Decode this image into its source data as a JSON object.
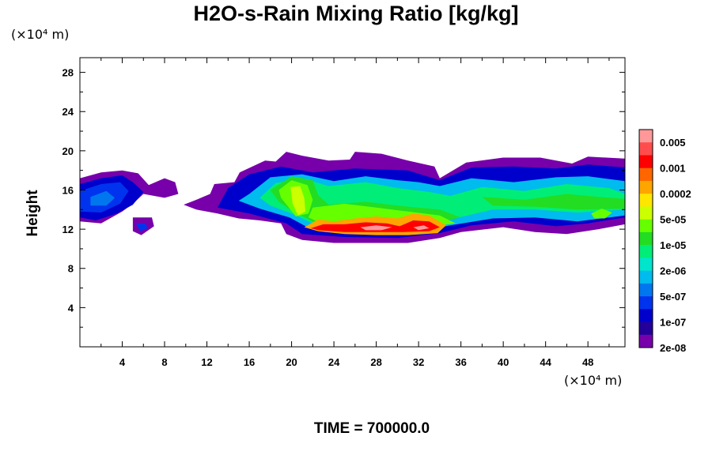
{
  "chart_data": {
    "type": "heatmap",
    "title": "H2O-s-Rain Mixing Ratio [kg/kg]",
    "xlabel": "",
    "ylabel": "Height",
    "x_unit": "(×10⁴ m)",
    "y_unit": "(×10⁴ m)",
    "xlim": [
      0,
      51.5
    ],
    "ylim": [
      0,
      29.5
    ],
    "xticks": [
      4,
      8,
      12,
      16,
      20,
      24,
      28,
      32,
      36,
      40,
      44,
      48
    ],
    "yticks": [
      4,
      8,
      12,
      16,
      20,
      24,
      28
    ],
    "grid": false,
    "colorbar": {
      "labels": [
        "0.005",
        "0.001",
        "0.0002",
        "5e-05",
        "1e-05",
        "2e-06",
        "5e-07",
        "1e-07",
        "2e-08"
      ],
      "colors": [
        "#ff9999",
        "#ff4d4d",
        "#ff0000",
        "#ff6600",
        "#ffa500",
        "#ffe600",
        "#ccff00",
        "#66ff00",
        "#22dd22",
        "#00ee77",
        "#00e5cc",
        "#00bbee",
        "#0077ee",
        "#0033ee",
        "#0000cc",
        "#220099",
        "#7700aa"
      ]
    },
    "footer": "TIME = 700000.0",
    "regions": [
      {
        "level": 0,
        "points": [
          [
            0,
            17.2
          ],
          [
            2,
            17.8
          ],
          [
            4,
            18
          ],
          [
            5.5,
            17.7
          ],
          [
            6.5,
            16.5
          ],
          [
            8,
            17.2
          ],
          [
            9,
            16.8
          ],
          [
            9.3,
            15.6
          ],
          [
            8,
            15.2
          ],
          [
            6,
            15.6
          ],
          [
            5,
            14.6
          ],
          [
            4,
            13.8
          ],
          [
            2,
            12.6
          ],
          [
            0,
            12.8
          ]
        ]
      },
      {
        "level": 0,
        "points": [
          [
            5,
            13.2
          ],
          [
            6.8,
            13.2
          ],
          [
            7,
            12.3
          ],
          [
            5.8,
            11.4
          ],
          [
            5,
            11.8
          ]
        ]
      },
      {
        "level": 0,
        "points": [
          [
            9.8,
            14.5
          ],
          [
            11,
            15
          ],
          [
            12.3,
            15.6
          ],
          [
            12.7,
            16.6
          ],
          [
            14.6,
            16.8
          ],
          [
            15.1,
            17.8
          ],
          [
            16.5,
            18.5
          ],
          [
            17.5,
            19
          ],
          [
            18.5,
            18.9
          ],
          [
            19.5,
            19.9
          ],
          [
            21,
            19.5
          ],
          [
            23.5,
            19
          ],
          [
            25.5,
            19.1
          ],
          [
            26,
            19.9
          ],
          [
            28.5,
            19.7
          ],
          [
            31,
            19
          ],
          [
            33.5,
            18.4
          ],
          [
            34,
            17.2
          ],
          [
            36.5,
            18.8
          ],
          [
            40,
            19.3
          ],
          [
            43.5,
            19.3
          ],
          [
            46.5,
            18.7
          ],
          [
            48,
            19.4
          ],
          [
            51.5,
            19.2
          ],
          [
            51.5,
            12.5
          ],
          [
            49,
            12
          ],
          [
            46,
            11.5
          ],
          [
            43,
            11.7
          ],
          [
            40,
            12.2
          ],
          [
            36,
            11.7
          ],
          [
            34,
            11.1
          ],
          [
            31,
            10.6
          ],
          [
            27,
            10.6
          ],
          [
            24,
            10.6
          ],
          [
            21,
            10.9
          ],
          [
            19.5,
            11.5
          ],
          [
            19,
            12.6
          ],
          [
            17,
            12.9
          ],
          [
            15,
            13.1
          ],
          [
            13,
            13.6
          ],
          [
            11,
            14
          ]
        ]
      },
      {
        "level": 2,
        "points": [
          [
            0,
            16.6
          ],
          [
            2,
            17.2
          ],
          [
            4,
            17.5
          ],
          [
            5,
            16.8
          ],
          [
            6,
            15.8
          ],
          [
            5,
            14.5
          ],
          [
            3.5,
            13.6
          ],
          [
            1.5,
            12.9
          ],
          [
            0,
            13.2
          ]
        ]
      },
      {
        "level": 2,
        "points": [
          [
            14,
            16.2
          ],
          [
            16,
            17.6
          ],
          [
            19,
            18.4
          ],
          [
            22,
            17.8
          ],
          [
            26,
            18.2
          ],
          [
            31,
            18
          ],
          [
            34,
            17
          ],
          [
            37,
            18.3
          ],
          [
            41,
            18.4
          ],
          [
            45,
            18.2
          ],
          [
            48,
            18.6
          ],
          [
            51.5,
            18.3
          ],
          [
            51.5,
            13.2
          ],
          [
            48,
            12.6
          ],
          [
            45,
            12.3
          ],
          [
            41,
            12.8
          ],
          [
            37,
            12.4
          ],
          [
            34,
            11.6
          ],
          [
            30,
            11.1
          ],
          [
            25,
            11.2
          ],
          [
            21,
            11.5
          ],
          [
            19.5,
            12.6
          ],
          [
            16,
            13.6
          ],
          [
            13,
            14.2
          ]
        ]
      },
      {
        "level": 3,
        "points": [
          [
            0,
            15.9
          ],
          [
            2,
            16.6
          ],
          [
            3.8,
            16.8
          ],
          [
            4.6,
            15.9
          ],
          [
            3.8,
            14.6
          ],
          [
            2,
            13.7
          ],
          [
            0,
            13.8
          ]
        ]
      },
      {
        "level": 3,
        "points": [
          [
            5.3,
            12.6
          ],
          [
            6.2,
            12.6
          ],
          [
            6.4,
            12.1
          ],
          [
            5.7,
            11.8
          ]
        ]
      },
      {
        "level": 4,
        "points": [
          [
            1,
            15.3
          ],
          [
            2.5,
            15.9
          ],
          [
            3.3,
            15.2
          ],
          [
            2.5,
            14.4
          ],
          [
            1,
            14.4
          ]
        ]
      },
      {
        "level": 5,
        "points": [
          [
            16,
            15.6
          ],
          [
            18,
            17.3
          ],
          [
            21,
            17.6
          ],
          [
            24,
            16.9
          ],
          [
            27,
            17.4
          ],
          [
            30,
            17
          ],
          [
            32,
            16.8
          ],
          [
            34,
            16.4
          ],
          [
            37,
            17.2
          ],
          [
            41,
            16.8
          ],
          [
            45,
            17.3
          ],
          [
            48,
            17.4
          ],
          [
            51.5,
            16.9
          ],
          [
            51.5,
            13.4
          ],
          [
            47,
            12.8
          ],
          [
            43,
            13.2
          ],
          [
            39,
            13.1
          ],
          [
            35,
            12.4
          ],
          [
            31,
            11.6
          ],
          [
            26,
            11.7
          ],
          [
            21.5,
            12.2
          ],
          [
            19.8,
            13.2
          ],
          [
            17,
            14.1
          ],
          [
            15,
            14.9
          ]
        ]
      },
      {
        "level": 7,
        "points": [
          [
            17,
            15.2
          ],
          [
            18.5,
            16.7
          ],
          [
            21,
            17.2
          ],
          [
            23.5,
            16.4
          ],
          [
            27,
            16.8
          ],
          [
            30,
            16.2
          ],
          [
            33,
            15.8
          ],
          [
            35,
            15.4
          ],
          [
            38,
            16.3
          ],
          [
            42,
            15.9
          ],
          [
            46,
            16.6
          ],
          [
            50,
            16.2
          ],
          [
            51.5,
            15.6
          ],
          [
            51.5,
            14
          ],
          [
            47,
            13.7
          ],
          [
            43,
            14
          ],
          [
            39,
            14
          ],
          [
            35,
            13
          ],
          [
            31,
            12
          ],
          [
            26,
            12
          ],
          [
            22,
            12.6
          ],
          [
            20,
            13.6
          ],
          [
            18,
            14.4
          ]
        ]
      },
      {
        "level": 8,
        "points": [
          [
            18,
            16
          ],
          [
            20,
            17.4
          ],
          [
            22,
            17
          ],
          [
            22.5,
            15.5
          ],
          [
            23.5,
            14.5
          ],
          [
            27,
            14.8
          ],
          [
            30,
            14.4
          ],
          [
            34,
            14
          ],
          [
            36,
            13.2
          ],
          [
            31,
            12.2
          ],
          [
            26,
            12.2
          ],
          [
            22,
            12.8
          ],
          [
            20,
            13.9
          ],
          [
            18.8,
            14.8
          ]
        ]
      },
      {
        "level": 8,
        "points": [
          [
            38,
            15.3
          ],
          [
            42,
            15
          ],
          [
            46,
            15.6
          ],
          [
            49,
            15.3
          ],
          [
            51.5,
            15.1
          ],
          [
            51.5,
            14.1
          ],
          [
            47,
            14
          ],
          [
            43,
            14.3
          ],
          [
            39,
            14.4
          ]
        ]
      },
      {
        "level": 9,
        "points": [
          [
            18.8,
            16
          ],
          [
            20,
            17
          ],
          [
            21.5,
            16.5
          ],
          [
            22,
            15
          ],
          [
            21.6,
            13.6
          ],
          [
            20.4,
            13.3
          ],
          [
            19.6,
            14.4
          ],
          [
            19,
            15.2
          ]
        ]
      },
      {
        "level": 9,
        "points": [
          [
            22,
            14.2
          ],
          [
            25,
            14.6
          ],
          [
            28,
            14.2
          ],
          [
            31,
            13.8
          ],
          [
            34,
            13.4
          ],
          [
            35.5,
            12.6
          ],
          [
            32,
            12.1
          ],
          [
            27,
            12.1
          ],
          [
            23,
            12.5
          ],
          [
            21.6,
            13.2
          ]
        ]
      },
      {
        "level": 9,
        "points": [
          [
            48.3,
            13.6
          ],
          [
            49.3,
            14.1
          ],
          [
            50.3,
            13.7
          ],
          [
            49.6,
            13.1
          ],
          [
            48.6,
            13.1
          ]
        ]
      },
      {
        "level": 10,
        "points": [
          [
            19.9,
            16.3
          ],
          [
            20.8,
            16.4
          ],
          [
            21.2,
            15.2
          ],
          [
            21.3,
            13.8
          ],
          [
            20.6,
            13.4
          ],
          [
            20.1,
            14.6
          ]
        ]
      },
      {
        "level": 12,
        "points": [
          [
            21.2,
            12.2
          ],
          [
            22.5,
            13
          ],
          [
            24,
            12.8
          ],
          [
            26,
            13.1
          ],
          [
            28,
            13.3
          ],
          [
            30,
            13.1
          ],
          [
            31.5,
            13.6
          ],
          [
            33,
            13.4
          ],
          [
            34.6,
            12.4
          ],
          [
            33.8,
            11.6
          ],
          [
            31,
            11.4
          ],
          [
            28,
            11.4
          ],
          [
            25,
            11.5
          ],
          [
            22.5,
            11.8
          ]
        ]
      },
      {
        "level": 14,
        "points": [
          [
            21.8,
            12.1
          ],
          [
            23,
            12.5
          ],
          [
            25,
            12.5
          ],
          [
            27,
            12.7
          ],
          [
            29,
            12.6
          ],
          [
            30.2,
            12.3
          ],
          [
            31.5,
            12.9
          ],
          [
            33,
            12.8
          ],
          [
            34,
            12.2
          ],
          [
            33,
            11.8
          ],
          [
            30.5,
            11.7
          ],
          [
            28,
            11.7
          ],
          [
            25,
            11.7
          ],
          [
            22.5,
            11.9
          ]
        ]
      },
      {
        "level": 16,
        "points": [
          [
            26.5,
            12.2
          ],
          [
            28,
            12.4
          ],
          [
            29.5,
            12.2
          ],
          [
            28.5,
            11.9
          ],
          [
            27,
            11.9
          ]
        ]
      },
      {
        "level": 16,
        "points": [
          [
            31.5,
            12.2
          ],
          [
            32.5,
            12.4
          ],
          [
            33,
            12.1
          ],
          [
            32,
            11.9
          ]
        ]
      }
    ]
  }
}
